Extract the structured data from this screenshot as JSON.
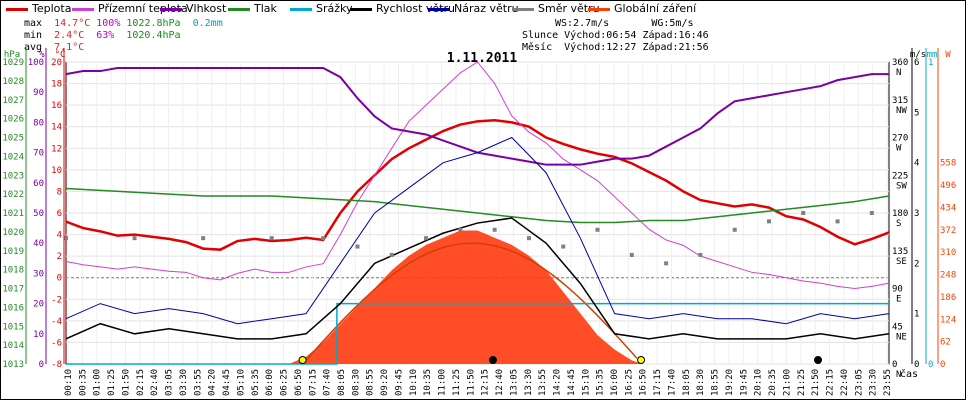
{
  "legend": [
    {
      "label": "Teplota",
      "color": "#e00000"
    },
    {
      "label": "Přízemní teplota",
      "color": "#d040d0"
    },
    {
      "label": "Vlhkost",
      "color": "#7a00a0"
    },
    {
      "label": "Tlak",
      "color": "#228b22"
    },
    {
      "label": "Srážky",
      "color": "#00aacc"
    },
    {
      "label": "Rychlost větru",
      "color": "#000000"
    },
    {
      "label": "Náraz větru",
      "color": "#0000a0"
    },
    {
      "label": "Směr větru",
      "color": "#808080"
    },
    {
      "label": "Globální záření",
      "color": "#ff4000"
    }
  ],
  "stats": {
    "max_label": "max",
    "max_temp": "14.7°C",
    "max_hum": "100%",
    "max_press": "1022.8hPa",
    "max_rain": "0.2mm",
    "min_label": "min",
    "min_temp": "2.4°C",
    "min_hum": "63%",
    "min_press": "1020.4hPa",
    "avg_label": "avg",
    "avg_temp": "7.1°C",
    "ws": "WS:2.7m/s",
    "wg": "WG:5m/s",
    "sun_label": "Slunce",
    "sun_rise": "Východ:06:54",
    "sun_set": "Západ:16:46",
    "moon_label": "Měsíc",
    "moon_rise": "Východ:12:27",
    "moon_set": "Západ:21:56"
  },
  "chart_data": {
    "type": "line",
    "title": "1.11.2011",
    "xlabel": "čas",
    "x_ticks": [
      "00:10",
      "00:35",
      "01:00",
      "01:25",
      "01:50",
      "02:15",
      "02:40",
      "03:05",
      "03:30",
      "03:55",
      "04:20",
      "04:45",
      "05:10",
      "05:35",
      "06:00",
      "06:25",
      "06:50",
      "07:15",
      "07:40",
      "08:05",
      "08:30",
      "08:55",
      "09:20",
      "09:45",
      "10:10",
      "10:35",
      "11:00",
      "11:25",
      "11:50",
      "12:15",
      "12:40",
      "13:05",
      "13:30",
      "13:55",
      "14:20",
      "14:45",
      "15:10",
      "15:35",
      "16:00",
      "16:25",
      "16:50",
      "17:15",
      "17:40",
      "18:05",
      "18:30",
      "18:55",
      "19:20",
      "19:45",
      "20:10",
      "20:35",
      "21:00",
      "21:25",
      "21:50",
      "22:15",
      "22:40",
      "23:05",
      "23:30",
      "23:55"
    ],
    "axes": {
      "hpa": {
        "label": "hPa",
        "color": "#228b22",
        "ticks": [
          1013,
          1014,
          1015,
          1016,
          1017,
          1018,
          1019,
          1020,
          1021,
          1022,
          1023,
          1024,
          1025,
          1026,
          1027,
          1028,
          1029
        ]
      },
      "percent": {
        "label": "%",
        "color": "#7a00a0",
        "ticks": [
          0,
          10,
          20,
          30,
          40,
          50,
          60,
          70,
          80,
          90,
          100
        ]
      },
      "celsius": {
        "label": "°C",
        "color": "#e00000",
        "ticks": [
          -8,
          -6,
          -4,
          -2,
          0,
          2,
          4,
          6,
          8,
          10,
          12,
          14,
          16,
          18,
          20
        ]
      },
      "direction": {
        "color": "#000000",
        "ticks": [
          "360 N",
          "315 NW",
          "270 W",
          "225 SW",
          "180 S",
          "135 SE",
          "90 E",
          "45 NE",
          "0 N"
        ]
      },
      "wind": {
        "label": "m/s",
        "color": "#000000",
        "ticks": [
          0,
          1,
          2,
          3,
          4,
          5,
          6
        ]
      },
      "rain": {
        "label": "mm",
        "color": "#00aacc",
        "ticks": [
          0,
          1
        ]
      },
      "radiation": {
        "label": "W",
        "color": "#ff4000",
        "ticks": [
          0,
          62,
          124,
          186,
          248,
          310,
          372,
          434,
          496,
          558
        ]
      }
    },
    "series": [
      {
        "name": "Teplota",
        "unit": "°C",
        "color": "#e00000",
        "x": [
          0,
          0.5,
          1,
          1.5,
          2,
          2.5,
          3,
          3.5,
          4,
          4.5,
          5,
          5.5,
          6,
          6.5,
          7,
          7.5,
          8,
          8.5,
          9,
          9.5,
          10,
          10.5,
          11,
          11.5,
          12,
          12.5,
          13,
          13.5,
          14,
          14.5,
          15,
          15.5,
          16,
          16.5,
          17,
          17.5,
          18,
          18.5,
          19,
          19.5,
          20,
          20.5,
          21,
          21.5,
          22,
          22.5,
          23,
          23.5,
          24
        ],
        "y": [
          5.2,
          4.6,
          4.3,
          3.9,
          4.0,
          3.8,
          3.6,
          3.3,
          2.7,
          2.6,
          3.4,
          3.6,
          3.4,
          3.5,
          3.7,
          3.5,
          6.0,
          8.0,
          9.5,
          11.0,
          12.0,
          12.8,
          13.6,
          14.2,
          14.5,
          14.6,
          14.4,
          14.0,
          13.0,
          12.4,
          11.9,
          11.5,
          11.2,
          10.6,
          9.8,
          9.0,
          8.0,
          7.2,
          6.9,
          6.6,
          6.8,
          6.5,
          5.7,
          5.4,
          4.7,
          3.8,
          3.1,
          3.6,
          4.2
        ]
      },
      {
        "name": "Přízemní teplota",
        "unit": "°C",
        "color": "#d040d0",
        "x": [
          0,
          0.5,
          1,
          1.5,
          2,
          2.5,
          3,
          3.5,
          4,
          4.5,
          5,
          5.5,
          6,
          6.5,
          7,
          7.5,
          8,
          8.5,
          9,
          9.5,
          10,
          10.5,
          11,
          11.5,
          12,
          12.5,
          13,
          13.5,
          14,
          14.5,
          15,
          15.5,
          16,
          16.5,
          17,
          17.5,
          18,
          18.5,
          19,
          19.5,
          20,
          20.5,
          21,
          21.5,
          22,
          22.5,
          23,
          23.5,
          24
        ],
        "y": [
          1.5,
          1.2,
          1.0,
          0.8,
          1.0,
          0.8,
          0.6,
          0.5,
          0.0,
          -0.2,
          0.4,
          0.8,
          0.5,
          0.5,
          1.0,
          1.3,
          4.0,
          7.0,
          9.5,
          12.0,
          14.5,
          16.0,
          17.5,
          19.0,
          20.0,
          18.0,
          15.0,
          13.5,
          12.5,
          11.0,
          10.0,
          9.0,
          7.5,
          6.0,
          4.5,
          3.5,
          3.0,
          2.0,
          1.5,
          1.0,
          0.5,
          0.3,
          0.0,
          -0.3,
          -0.5,
          -0.8,
          -1.0,
          -0.8,
          -0.5
        ]
      },
      {
        "name": "Vlhkost",
        "unit": "%",
        "color": "#7a00a0",
        "x": [
          0,
          0.5,
          1,
          1.5,
          2,
          2.5,
          3,
          3.5,
          4,
          4.5,
          5,
          5.5,
          6,
          6.5,
          7,
          7.5,
          8,
          8.5,
          9,
          9.5,
          10,
          10.5,
          11,
          11.5,
          12,
          12.5,
          13,
          13.5,
          14,
          14.5,
          15,
          15.5,
          16,
          16.5,
          17,
          17.5,
          18,
          18.5,
          19,
          19.5,
          20,
          20.5,
          21,
          21.5,
          22,
          22.5,
          23,
          23.5,
          24
        ],
        "y": [
          96,
          97,
          97,
          98,
          98,
          98,
          98,
          98,
          98,
          98,
          98,
          98,
          98,
          98,
          98,
          98,
          95,
          88,
          82,
          78,
          77,
          76,
          74,
          72,
          70,
          69,
          68,
          67,
          66,
          66,
          66,
          67,
          68,
          68,
          69,
          72,
          75,
          78,
          83,
          87,
          88,
          89,
          90,
          91,
          92,
          94,
          95,
          96,
          96
        ]
      },
      {
        "name": "Tlak",
        "unit": "hPa",
        "color": "#228b22",
        "x": [
          0,
          1,
          2,
          3,
          4,
          5,
          6,
          7,
          8,
          9,
          10,
          11,
          12,
          13,
          14,
          15,
          16,
          17,
          18,
          19,
          20,
          21,
          22,
          23,
          24
        ],
        "y": [
          1022.3,
          1022.2,
          1022.1,
          1022.0,
          1021.9,
          1021.9,
          1021.9,
          1021.8,
          1021.7,
          1021.6,
          1021.4,
          1021.2,
          1021.0,
          1020.8,
          1020.6,
          1020.5,
          1020.5,
          1020.6,
          1020.6,
          1020.8,
          1021.0,
          1021.2,
          1021.4,
          1021.6,
          1021.9
        ]
      },
      {
        "name": "Globální záření",
        "unit": "W",
        "color": "#ff4000",
        "x": [
          6.5,
          7.0,
          7.5,
          8.0,
          8.5,
          9.0,
          9.5,
          10.0,
          10.5,
          11.0,
          11.5,
          12.0,
          12.5,
          13.0,
          13.5,
          14.0,
          14.5,
          15.0,
          15.5,
          16.0,
          16.5,
          16.8
        ],
        "y": [
          0,
          20,
          60,
          110,
          160,
          210,
          260,
          300,
          330,
          350,
          370,
          370,
          350,
          330,
          300,
          260,
          200,
          140,
          80,
          40,
          10,
          0
        ]
      },
      {
        "name": "Srážky",
        "unit": "mm",
        "color": "#00aacc",
        "x": [
          0,
          7.9,
          7.9,
          24
        ],
        "y": [
          0,
          0,
          0.2,
          0.2
        ]
      },
      {
        "name": "Rychlost větru",
        "unit": "m/s",
        "color": "#000000",
        "x": [
          0,
          1,
          2,
          3,
          4,
          5,
          6,
          7,
          8,
          9,
          10,
          11,
          12,
          13,
          14,
          15,
          16,
          17,
          18,
          19,
          20,
          21,
          22,
          23,
          24
        ],
        "y": [
          0.5,
          0.8,
          0.6,
          0.7,
          0.6,
          0.5,
          0.5,
          0.6,
          1.2,
          2.0,
          2.3,
          2.6,
          2.8,
          2.9,
          2.4,
          1.6,
          0.6,
          0.5,
          0.6,
          0.5,
          0.5,
          0.5,
          0.6,
          0.5,
          0.6
        ]
      },
      {
        "name": "Náraz větru",
        "unit": "m/s",
        "color": "#0000a0",
        "x": [
          0,
          1,
          2,
          3,
          4,
          5,
          6,
          7,
          8,
          9,
          10,
          11,
          12,
          13,
          14,
          15,
          16,
          17,
          18,
          19,
          20,
          21,
          22,
          23,
          24
        ],
        "y": [
          0.9,
          1.2,
          1.0,
          1.1,
          1.0,
          0.8,
          0.9,
          1.0,
          2.0,
          3.0,
          3.5,
          4.0,
          4.2,
          4.5,
          3.8,
          2.5,
          1.0,
          0.9,
          1.0,
          0.9,
          0.9,
          0.8,
          1.0,
          0.9,
          1.0
        ]
      },
      {
        "name": "Směr větru",
        "unit": "°",
        "color": "#808080",
        "x": [
          0,
          2,
          4,
          6,
          7.5,
          8.5,
          9.5,
          10.5,
          11.5,
          12.5,
          13.5,
          14.5,
          15.5,
          16.5,
          17.5,
          18.5,
          19.5,
          20.5,
          21.5,
          22.5,
          23.5
        ],
        "y": [
          150,
          150,
          150,
          150,
          150,
          140,
          130,
          150,
          160,
          160,
          150,
          140,
          160,
          130,
          120,
          130,
          160,
          170,
          180,
          170,
          180
        ]
      }
    ]
  }
}
